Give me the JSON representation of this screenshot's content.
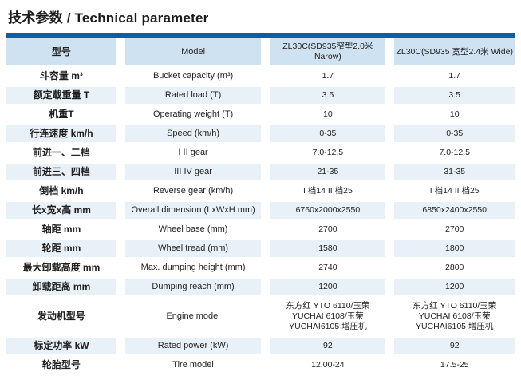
{
  "page_title": "技术参数 / Technical parameter",
  "colors": {
    "top_bar": "#0b5ea8",
    "header_bg": "#cfe2f2",
    "band_bg": "#e9f1f8",
    "text": "#1f1f1f"
  },
  "table": {
    "columns": [
      "型号",
      "Model",
      "ZL30C(SD935窄型2.0米Narow)",
      "ZL30C(SD935 宽型2.4米 Wide)"
    ],
    "rows": [
      [
        "斗容量 m³",
        "Bucket capacity (m³)",
        "1.7",
        "1.7"
      ],
      [
        "额定载重量 T",
        "Rated load (T)",
        "3.5",
        "3.5"
      ],
      [
        "机重T",
        "Operating weight (T)",
        "10",
        "10"
      ],
      [
        "行连速度 km/h",
        "Speed (km/h)",
        "0-35",
        "0-35"
      ],
      [
        "前进一、二档",
        "I II gear",
        "7.0-12.5",
        "7.0-12.5"
      ],
      [
        "前进三、四档",
        "III IV gear",
        "21-35",
        "31-35"
      ],
      [
        "倒档 km/h",
        "Reverse gear (km/h)",
        "I 档14 II 档25",
        "I 档14 II 档25"
      ],
      [
        "长x宽x高 mm",
        "Overall dimension (LxWxH mm)",
        "6760x2000x2550",
        "6850x2400x2550"
      ],
      [
        "轴距 mm",
        "Wheel base (mm)",
        "2700",
        "2700"
      ],
      [
        "轮距 mm",
        "Wheel tread (mm)",
        "1580",
        "1800"
      ],
      [
        "最大卸载高度 mm",
        "Max. dumping height (mm)",
        "2740",
        "2800"
      ],
      [
        "卸载距离 mm",
        "Dumping reach (mm)",
        "1200",
        "1200"
      ],
      [
        "发动机型号",
        "Engine model",
        "东方红 YTO 6110/玉荣 YUCHAI 6108/玉荣 YUCHAI6105 增压机",
        "东方红 YTO 6110/玉荣 YUCHAI 6108/玉荣 YUCHAI6105 增压机"
      ],
      [
        "标定功率 kW",
        "Rated power (kW)",
        "92",
        "92"
      ],
      [
        "轮胎型号",
        "Tire model",
        "12.00-24",
        "17.5-25"
      ]
    ]
  }
}
